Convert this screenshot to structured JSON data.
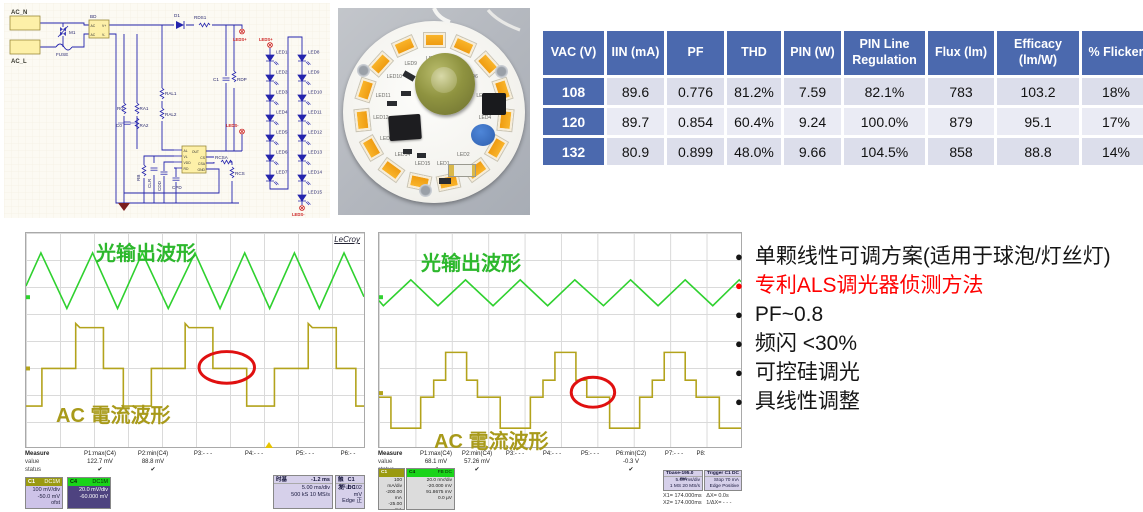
{
  "table": {
    "headers": [
      "VAC (V)",
      "IIN (mA)",
      "PF",
      "THD",
      "PIN (W)",
      "PIN Line Regulation",
      "Flux (lm)",
      "Efficacy (lm/W)",
      "% Flicker"
    ],
    "rows": [
      [
        "108",
        "89.6",
        "0.776",
        "81.2%",
        "7.59",
        "82.1%",
        "783",
        "103.2",
        "18%"
      ],
      [
        "120",
        "89.7",
        "0.854",
        "60.4%",
        "9.24",
        "100.0%",
        "879",
        "95.1",
        "17%"
      ],
      [
        "132",
        "80.9",
        "0.899",
        "48.0%",
        "9.66",
        "104.5%",
        "858",
        "88.8",
        "14%"
      ]
    ]
  },
  "bullets": [
    {
      "text": "单颗线性可调方案(适用于球泡/灯丝灯)",
      "color": "#151515"
    },
    {
      "text": "专利ALS调光器侦测方法",
      "color": "#ff0000"
    },
    {
      "text": "PF~0.8",
      "color": "#151515"
    },
    {
      "text": "频闪 <30%",
      "color": "#151515"
    },
    {
      "text": "可控硅调光",
      "color": "#151515"
    },
    {
      "text": "具线性调整",
      "color": "#151515"
    }
  ],
  "schematic": {
    "ports": {
      "neutral": "AC_N",
      "line": "AC_L"
    },
    "labels": {
      "fuse": "FUSE",
      "varistor": "M1",
      "bridge": "BD",
      "d1": "D1",
      "rds1": "RDS1",
      "c1": "C1",
      "rdp": "RDP",
      "ral1": "RAL1",
      "ral2": "RAL2",
      "r0": "R0",
      "ra1": "RA1",
      "c0": "C0",
      "ra2": "RA2",
      "rb": "RB",
      "clr": "CLR",
      "cdd": "CDD",
      "cpd": "CPD",
      "rcsa": "RCSA",
      "rcs": "RCS"
    },
    "bd_pins": [
      "AC",
      "AC",
      "V+",
      "V-"
    ],
    "ic": {
      "pins_left": [
        "AL",
        "VL",
        "VDD",
        "RD"
      ],
      "pins_right": [
        "OUT",
        "CS",
        "CSA",
        "GND"
      ]
    },
    "nets": {
      "plus": "LEDS+",
      "minus": "LEDS-"
    },
    "led_columns": [
      [
        "LED1",
        "LED2",
        "LED3",
        "LED4",
        "LED5",
        "LED6",
        "LED7"
      ],
      [
        "LED8",
        "LED9",
        "LED10",
        "LED11",
        "LED12",
        "LED13",
        "LED14",
        "LED15"
      ]
    ]
  },
  "pcb": {
    "leds": [
      "LED1",
      "LED2",
      "LED3",
      "LED4",
      "LED5",
      "LED6",
      "LED7",
      "LED8",
      "LED9",
      "LED10",
      "LED11",
      "LED12",
      "LED13",
      "LED14",
      "LED15"
    ]
  },
  "scopes": [
    {
      "logo": "LeCroy",
      "wave_label_top": "光输出波形",
      "wave_label_bottom": "AC 電流波形",
      "measure_row_labels": [
        "Measure",
        "value",
        "status"
      ],
      "measure_cols": [
        {
          "name": "P1:max(C4)",
          "value": "122.7 mV",
          "status": "✔"
        },
        {
          "name": "P2:min(C4)",
          "value": "88.8 mV",
          "status": "✔"
        },
        {
          "name": "P3:- - -",
          "value": "",
          "status": ""
        },
        {
          "name": "P4:- - -",
          "value": "",
          "status": ""
        },
        {
          "name": "P5:- - -",
          "value": "",
          "status": ""
        },
        {
          "name": "P6:- -",
          "value": "",
          "status": ""
        }
      ],
      "ch1": {
        "id": "C1",
        "tag": "DC1M",
        "lines": [
          "100 mV/div",
          "-50.0 mV ofst"
        ]
      },
      "ch4": {
        "id": "C4",
        "tag": "DC1M",
        "lines": [
          "20.0 mV/div",
          "-60.000 mV"
        ]
      },
      "timebase": {
        "title": "时基",
        "value": "-1.2 ms",
        "lines": [
          "5.00 ms/div",
          "500 kS  10 MS/s"
        ]
      },
      "trigger": {
        "title": "触发",
        "value": "C1 DC",
        "lines": [
          "停止  102 mV",
          "Edge  正"
        ]
      }
    },
    {
      "logo": "",
      "wave_label_top": "光输出波形",
      "wave_label_bottom": "AC 電流波形",
      "measure_row_labels": [
        "Measure",
        "value",
        "status"
      ],
      "measure_cols": [
        {
          "name": "P1:max(C4)",
          "value": "68.1 mV",
          "status": "✔"
        },
        {
          "name": "P2:min(C4)",
          "value": "57.26 mV",
          "status": "✔"
        },
        {
          "name": "P3:- - -",
          "value": "",
          "status": ""
        },
        {
          "name": "P4:- - -",
          "value": "",
          "status": ""
        },
        {
          "name": "P5:- - -",
          "value": "",
          "status": ""
        },
        {
          "name": "P6:min(C2)",
          "value": "-0.3 V",
          "status": "✔"
        },
        {
          "name": "P7:- - -",
          "value": "",
          "status": ""
        },
        {
          "name": "P8:",
          "value": "",
          "status": ""
        }
      ],
      "ch1": {
        "id": "C1",
        "tag": "DC1M",
        "lines": [
          "100 mA/div",
          "-200.00 mA",
          "-25.00 mA",
          "0.00 mA"
        ]
      },
      "ch4": {
        "id": "C4",
        "tag": "FB DC",
        "lines": [
          "20.0 mV/div",
          "-20.000 mV",
          "91.8675 mV",
          "0.0 µV"
        ]
      },
      "timebase": {
        "title": "Tbase",
        "value": "-195.0 ms",
        "lines": [
          "5.00 ms/div",
          "1 MS  20 MS/s"
        ]
      },
      "trigger": {
        "title": "Trigger",
        "value": "C1 DC",
        "lines": [
          "Stop  70 mA",
          "Edge  Positive"
        ]
      },
      "cursors": [
        "X1= 174.000ms   ΔX= 0.0s",
        "X2= 174.000ms   1/ΔX= - - -"
      ]
    }
  ],
  "chart_data": [
    {
      "type": "line",
      "title": "LeCroy oscilloscope capture 1: 光输出波形 (top) + AC 電流波形 (bottom)",
      "x_units": "time, 5.00 ms/div, 10 divisions",
      "y_units": "normalized screen position (0 = top of graticule, 1 = bottom)",
      "grid": {
        "xdiv": 10,
        "ydiv": 8
      },
      "legend_position": "none",
      "series": [
        {
          "name": "光输出波形 (C4 light output, triangle ripple)",
          "color": "#2fd12f",
          "points": [
            [
              0,
              0.247
            ],
            [
              0.044,
              0.093
            ],
            [
              0.121,
              0.353
            ],
            [
              0.197,
              0.093
            ],
            [
              0.271,
              0.353
            ],
            [
              0.344,
              0.093
            ],
            [
              0.421,
              0.353
            ],
            [
              0.5,
              0.093
            ],
            [
              0.574,
              0.353
            ],
            [
              0.647,
              0.093
            ],
            [
              0.721,
              0.353
            ],
            [
              0.794,
              0.093
            ],
            [
              0.868,
              0.353
            ],
            [
              0.941,
              0.093
            ],
            [
              1,
              0.298
            ]
          ]
        },
        {
          "name": "AC 電流波形 (C1 AC input current, stepped square)",
          "color": "#b3a31c",
          "points": [
            [
              0,
              0.809
            ],
            [
              0.047,
              0.809
            ],
            [
              0.047,
              0.633
            ],
            [
              0.147,
              0.633
            ],
            [
              0.147,
              0.423
            ],
            [
              0.159,
              0.442
            ],
            [
              0.229,
              0.442
            ],
            [
              0.229,
              0.633
            ],
            [
              0.288,
              0.633
            ],
            [
              0.288,
              0.809
            ],
            [
              0.371,
              0.809
            ],
            [
              0.371,
              0.633
            ],
            [
              0.471,
              0.633
            ],
            [
              0.471,
              0.423
            ],
            [
              0.482,
              0.442
            ],
            [
              0.553,
              0.442
            ],
            [
              0.553,
              0.633
            ],
            [
              0.653,
              0.633
            ],
            [
              0.653,
              0.809
            ],
            [
              0.735,
              0.809
            ],
            [
              0.735,
              0.633
            ],
            [
              0.835,
              0.633
            ],
            [
              0.835,
              0.423
            ],
            [
              0.847,
              0.442
            ],
            [
              0.918,
              0.442
            ],
            [
              0.918,
              0.633
            ],
            [
              0.976,
              0.633
            ],
            [
              0.976,
              0.809
            ],
            [
              1,
              0.809
            ]
          ]
        }
      ],
      "annotations": [
        {
          "type": "ellipse",
          "color": "#e01010",
          "cx": 0.594,
          "cy": 0.628,
          "rx": 0.082,
          "ry": 0.074
        }
      ],
      "markers": {
        "trigger_x": 0.715,
        "edge_marks_y": [
          0.3,
          0.633
        ]
      }
    },
    {
      "type": "line",
      "title": "LeCroy oscilloscope capture 2 (dimmed): 光输出波形 (top) + AC 電流波形 (bottom)",
      "x_units": "time, 5.00 ms/div, 10 divisions",
      "y_units": "normalized screen position (0 = top of graticule, 1 = bottom)",
      "grid": {
        "xdiv": 10,
        "ydiv": 8
      },
      "legend_position": "none",
      "series": [
        {
          "name": "光输出波形 (C4 light output, triangle ripple)",
          "color": "#2fd12f",
          "points": [
            [
              0,
              0.316
            ],
            [
              0.012,
              0.34
            ],
            [
              0.088,
              0.219
            ],
            [
              0.163,
              0.34
            ],
            [
              0.239,
              0.219
            ],
            [
              0.315,
              0.34
            ],
            [
              0.39,
              0.219
            ],
            [
              0.466,
              0.34
            ],
            [
              0.541,
              0.219
            ],
            [
              0.62,
              0.34
            ],
            [
              0.695,
              0.219
            ],
            [
              0.771,
              0.34
            ],
            [
              0.846,
              0.219
            ],
            [
              0.922,
              0.34
            ],
            [
              0.995,
              0.219
            ],
            [
              1,
              0.228
            ]
          ]
        },
        {
          "name": "AC 電流波形 (C1 AC input current, staircase)",
          "color": "#b3a31c",
          "points": [
            [
              0,
              0.767
            ],
            [
              0.033,
              0.767
            ],
            [
              0.033,
              0.912
            ],
            [
              0.115,
              0.912
            ],
            [
              0.115,
              0.767
            ],
            [
              0.151,
              0.767
            ],
            [
              0.151,
              0.688
            ],
            [
              0.184,
              0.688
            ],
            [
              0.184,
              0.558
            ],
            [
              0.242,
              0.558
            ],
            [
              0.242,
              0.688
            ],
            [
              0.272,
              0.688
            ],
            [
              0.272,
              0.767
            ],
            [
              0.335,
              0.767
            ],
            [
              0.335,
              0.912
            ],
            [
              0.418,
              0.912
            ],
            [
              0.418,
              0.767
            ],
            [
              0.453,
              0.767
            ],
            [
              0.453,
              0.688
            ],
            [
              0.486,
              0.688
            ],
            [
              0.486,
              0.558
            ],
            [
              0.544,
              0.558
            ],
            [
              0.544,
              0.688
            ],
            [
              0.574,
              0.688
            ],
            [
              0.574,
              0.767
            ],
            [
              0.637,
              0.767
            ],
            [
              0.637,
              0.912
            ],
            [
              0.72,
              0.912
            ],
            [
              0.72,
              0.767
            ],
            [
              0.755,
              0.767
            ],
            [
              0.755,
              0.688
            ],
            [
              0.788,
              0.688
            ],
            [
              0.788,
              0.558
            ],
            [
              0.846,
              0.558
            ],
            [
              0.846,
              0.688
            ],
            [
              0.876,
              0.688
            ],
            [
              0.876,
              0.767
            ],
            [
              0.94,
              0.767
            ],
            [
              0.94,
              0.912
            ],
            [
              1,
              0.912
            ]
          ]
        }
      ],
      "annotations": [
        {
          "type": "ellipse",
          "color": "#e01010",
          "cx": 0.591,
          "cy": 0.744,
          "rx": 0.06,
          "ry": 0.07
        }
      ],
      "markers": {
        "trigger_x": null,
        "edge_marks_y": [
          0.3,
          0.748
        ]
      }
    }
  ]
}
